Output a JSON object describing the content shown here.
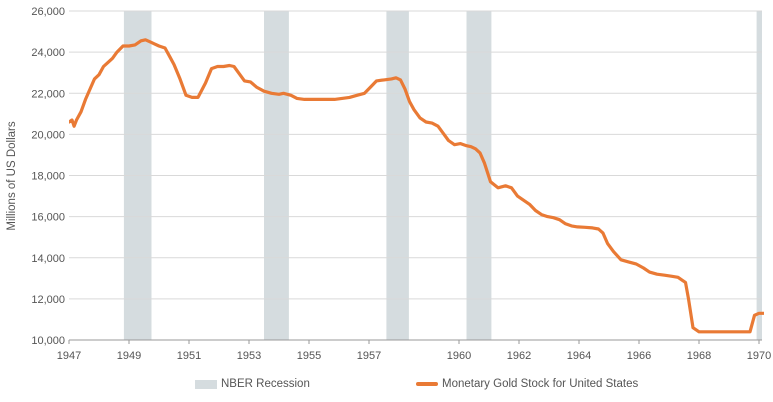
{
  "chart_data": {
    "type": "line",
    "title": "",
    "xlabel": "",
    "ylabel": "Millions of US Dollars",
    "xlim": [
      1947.0,
      1970.1
    ],
    "ylim": [
      10000,
      26000
    ],
    "x_ticks": [
      "1947",
      "1949",
      "1951",
      "1953",
      "1955",
      "1957",
      "1960",
      "1962",
      "1964",
      "1966",
      "1968",
      "1970"
    ],
    "y_ticks": [
      "10,000",
      "12,000",
      "14,000",
      "16,000",
      "18,000",
      "20,000",
      "22,000",
      "24,000",
      "26,000"
    ],
    "grid": "horizontal",
    "legend_position": "bottom",
    "colors": {
      "line": "#e97a35",
      "recession": "#d5dcdf",
      "grid": "#d9d9d9"
    },
    "recessions": [
      {
        "name": "NBER Recession",
        "start": 1948.83,
        "end": 1949.75
      },
      {
        "name": "NBER Recession",
        "start": 1953.5,
        "end": 1954.33
      },
      {
        "name": "NBER Recession",
        "start": 1957.58,
        "end": 1958.33
      },
      {
        "name": "NBER Recession",
        "start": 1960.25,
        "end": 1961.08
      },
      {
        "name": "NBER Recession",
        "start": 1969.92,
        "end": 1970.1
      }
    ],
    "series": [
      {
        "name": "Monetary Gold Stock for United States",
        "x": [
          1947.0,
          1947.1,
          1947.17,
          1947.25,
          1947.4,
          1947.55,
          1947.7,
          1947.85,
          1948.0,
          1948.15,
          1948.3,
          1948.45,
          1948.6,
          1948.8,
          1949.0,
          1949.2,
          1949.4,
          1949.55,
          1949.7,
          1949.85,
          1950.0,
          1950.2,
          1950.35,
          1950.5,
          1950.7,
          1950.9,
          1951.1,
          1951.3,
          1951.55,
          1951.75,
          1951.95,
          1952.15,
          1952.35,
          1952.5,
          1952.65,
          1952.85,
          1953.05,
          1953.25,
          1953.5,
          1953.75,
          1954.0,
          1954.15,
          1954.4,
          1954.6,
          1954.85,
          1955.1,
          1955.35,
          1955.6,
          1955.85,
          1956.1,
          1956.35,
          1956.6,
          1956.85,
          1957.05,
          1957.25,
          1957.5,
          1957.75,
          1957.9,
          1958.05,
          1958.2,
          1958.35,
          1958.5,
          1958.7,
          1958.9,
          1959.1,
          1959.3,
          1959.45,
          1959.65,
          1959.85,
          1960.05,
          1960.25,
          1960.4,
          1960.55,
          1960.7,
          1960.85,
          1961.05,
          1961.3,
          1961.55,
          1961.75,
          1961.95,
          1962.15,
          1962.35,
          1962.55,
          1962.75,
          1962.95,
          1963.15,
          1963.35,
          1963.55,
          1963.75,
          1963.95,
          1964.2,
          1964.45,
          1964.65,
          1964.8,
          1964.95,
          1965.15,
          1965.4,
          1965.65,
          1965.9,
          1966.15,
          1966.35,
          1966.6,
          1966.85,
          1967.1,
          1967.3,
          1967.45,
          1967.55,
          1967.65,
          1967.8,
          1968.0,
          1968.5,
          1969.0,
          1969.4,
          1969.7,
          1969.85,
          1970.0,
          1970.15,
          1970.3,
          1970.45,
          1970.6
        ],
        "values": [
          20600,
          20700,
          20400,
          20700,
          21100,
          21700,
          22200,
          22700,
          22900,
          23300,
          23500,
          23700,
          24000,
          24300,
          24300,
          24350,
          24550,
          24600,
          24500,
          24400,
          24300,
          24200,
          23800,
          23400,
          22700,
          21900,
          21800,
          21800,
          22500,
          23200,
          23300,
          23300,
          23350,
          23300,
          23000,
          22600,
          22550,
          22300,
          22100,
          22000,
          21950,
          22000,
          21900,
          21750,
          21700,
          21700,
          21700,
          21700,
          21700,
          21750,
          21800,
          21900,
          22000,
          22300,
          22600,
          22650,
          22700,
          22750,
          22650,
          22200,
          21600,
          21200,
          20800,
          20600,
          20550,
          20400,
          20100,
          19700,
          19500,
          19550,
          19450,
          19400,
          19300,
          19100,
          18600,
          17700,
          17400,
          17500,
          17400,
          17000,
          16800,
          16600,
          16300,
          16100,
          16000,
          15950,
          15850,
          15650,
          15550,
          15500,
          15480,
          15450,
          15400,
          15200,
          14700,
          14300,
          13900,
          13800,
          13700,
          13500,
          13300,
          13200,
          13150,
          13100,
          13050,
          12900,
          12800,
          12000,
          10600,
          10400,
          10400,
          10400,
          10400,
          10400,
          11200,
          11300,
          11300,
          11300,
          11250,
          11100
        ]
      }
    ]
  },
  "legend": {
    "recession_label": "NBER Recession",
    "series_label": "Monetary Gold Stock for United States"
  }
}
